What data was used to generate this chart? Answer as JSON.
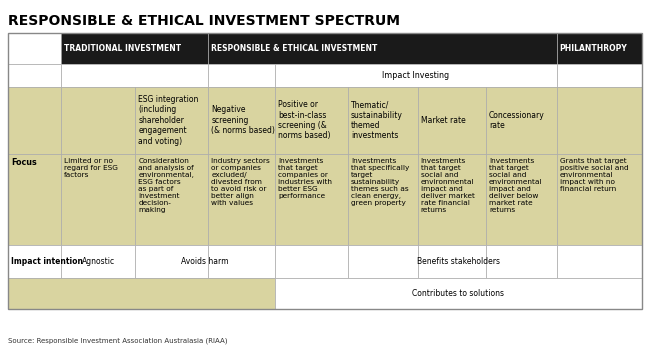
{
  "title": "RESPONSIBLE & ETHICAL INVESTMENT SPECTRUM",
  "title_fontsize": 10,
  "source_text": "Source: Responsible Investment Association Australasia (RIAA)",
  "background_color": "#ffffff",
  "header_bg": "#1a1a1a",
  "header_text_color": "#ffffff",
  "cell_bg_gold": "#d9d4a0",
  "cell_bg_white": "#ffffff",
  "header_fontsize": 5.5,
  "cell_fontsize": 5.5,
  "impact_investing_label": "Impact Investing",
  "focus_label": "Focus",
  "impact_intention_label": "Impact intention",
  "col2_label": "ESG integration\n(including\nshareholder\nengagement\nand voting)",
  "col3_label": "Negative\nscreening\n(& norms based)",
  "col4_label": "Positive or\nbest-in-class\nscreening (&\nnorms based)",
  "col5_label": "Thematic/\nsustainability\nthemed\ninvestments",
  "col6_label": "Market rate",
  "col7_label": "Concessionary\nrate",
  "focus_col0": "Limited or no\nregard for ESG\nfactors",
  "focus_col1": "Consideration\nand analysis of\nenvironmental,\nESG factors\nas part of\ninvestment\ndecision-\nmaking",
  "focus_col2": "Industry sectors\nor companies\nexcluded/\ndivested from\nto avoid risk or\nbetter align\nwith values",
  "focus_col3": "Investments\nthat target\ncompanies or\nindustries with\nbetter ESG\nperformance",
  "focus_col4": "Investments\nthat specifically\ntarget\nsustainability\nthemes such as\nclean energy,\ngreen property",
  "focus_col5": "Investments\nthat target\nsocial and\nenvironmental\nimpact and\ndeliver market\nrate financial\nreturns",
  "focus_col6": "Investments\nthat target\nsocial and\nenvironmental\nimpact and\ndeliver below\nmarket rate\nreturns",
  "focus_col7": "Grants that target\npositive social and\nenvironmental\nimpact with no\nfinancial return",
  "intent_agnostic": "Agnostic",
  "intent_avoids": "Avoids harm",
  "intent_benefits": "Benefits stakeholders",
  "contributes_label": "Contributes to solutions",
  "trad_header": "TRADITIONAL INVESTMENT",
  "rei_header": "RESPONSIBLE & ETHICAL INVESTMENT",
  "phil_header": "PHILANTHROPY"
}
